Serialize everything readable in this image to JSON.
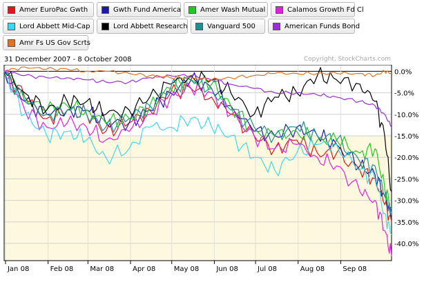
{
  "legend": [
    {
      "label": "Amer EuroPac Gwth",
      "color": "#dd1a1a"
    },
    {
      "label": "Gwth Fund America",
      "color": "#1c1c9e"
    },
    {
      "label": "Amer Wash Mutual",
      "color": "#22c922"
    },
    {
      "label": "Calamos Growth Fd Cl",
      "color": "#dd22dd"
    },
    {
      "label": "Lord Abbett Mid-Cap",
      "color": "#3fd6f0"
    },
    {
      "label": "Lord Abbett Research",
      "color": "#000000"
    },
    {
      "label": "Vanguard 500",
      "color": "#1f8f96"
    },
    {
      "label": "American Funds Bond",
      "color": "#9a2fd6"
    },
    {
      "label": "Amr Fs US Gov Scrts",
      "color": "#e07422"
    }
  ],
  "date_range": "31 December 2007 - 8 October 2008",
  "copyright": "Copyright, StockCharts.com",
  "chart_data": {
    "type": "line",
    "x": [
      "2007-12-31",
      "2008-01-15",
      "2008-01-31",
      "2008-02-15",
      "2008-02-29",
      "2008-03-14",
      "2008-03-31",
      "2008-04-15",
      "2008-04-30",
      "2008-05-15",
      "2008-05-30",
      "2008-06-13",
      "2008-06-30",
      "2008-07-15",
      "2008-07-31",
      "2008-08-15",
      "2008-08-29",
      "2008-09-15",
      "2008-09-26",
      "2008-10-03",
      "2008-10-08"
    ],
    "x_tick_labels": [
      "Jan 08",
      "Feb 08",
      "Mar 08",
      "Apr 08",
      "May 08",
      "Jun 08",
      "Jul 08",
      "Aug 08",
      "Sep 08"
    ],
    "y_tick_labels": [
      "0.0%",
      "-5.0%",
      "-10.0%",
      "-15.0%",
      "-20.0%",
      "-25.0%",
      "-30.0%",
      "-35.0%",
      "-40.0%"
    ],
    "ylim": [
      -44,
      1.5
    ],
    "grid": true,
    "legend_position": "top",
    "series": [
      {
        "name": "Amer EuroPac Gwth",
        "color": "#dd1a1a",
        "values": [
          0,
          -6,
          -11,
          -9,
          -10,
          -14,
          -12,
          -9,
          -5,
          -4,
          -6,
          -10,
          -15,
          -18,
          -16,
          -19,
          -19,
          -23,
          -25,
          -31,
          -35
        ]
      },
      {
        "name": "Gwth Fund America",
        "color": "#1c1c9e",
        "values": [
          0,
          -7,
          -10,
          -9,
          -9,
          -12,
          -12,
          -9,
          -5,
          -2,
          -4,
          -8,
          -14,
          -15,
          -13,
          -15,
          -17,
          -22,
          -24,
          -29,
          -34
        ]
      },
      {
        "name": "Amer Wash Mutual",
        "color": "#22c922",
        "values": [
          0,
          -6,
          -9,
          -8,
          -9,
          -12,
          -11,
          -8,
          -4,
          -2,
          -3,
          -8,
          -14,
          -15,
          -14,
          -16,
          -16,
          -19,
          -18,
          -27,
          -32
        ]
      },
      {
        "name": "Calamos Growth Fd Cl",
        "color": "#dd22dd",
        "values": [
          0,
          -9,
          -13,
          -12,
          -13,
          -16,
          -14,
          -10,
          -6,
          -4,
          -5,
          -10,
          -15,
          -18,
          -17,
          -20,
          -22,
          -28,
          -30,
          -37,
          -43
        ]
      },
      {
        "name": "Lord Abbett Mid-Cap",
        "color": "#3fd6f0",
        "values": [
          0,
          -10,
          -15,
          -14,
          -16,
          -20,
          -18,
          -13,
          -13,
          -11,
          -13,
          -15,
          -20,
          -23,
          -19,
          -17,
          -17,
          -23,
          -25,
          -33,
          -38
        ]
      },
      {
        "name": "Lord Abbett Research",
        "color": "#000000",
        "values": [
          0,
          -5,
          -9,
          -7,
          -7,
          -10,
          -9,
          -6,
          -3,
          -1,
          -2,
          -5,
          -10,
          -6,
          -5,
          -1,
          -2,
          -3,
          -7,
          -15,
          -28
        ]
      },
      {
        "name": "Vanguard 500",
        "color": "#1f8f96",
        "values": [
          0,
          -7,
          -10,
          -9,
          -10,
          -13,
          -11,
          -8,
          -4,
          -2,
          -4,
          -9,
          -13,
          -15,
          -13,
          -15,
          -16,
          -21,
          -22,
          -29,
          -33
        ]
      },
      {
        "name": "American Funds Bond",
        "color": "#9a2fd6",
        "values": [
          0,
          -1,
          -1.5,
          -1.5,
          -2,
          -2.5,
          -2.5,
          -1.5,
          -1,
          -1,
          -2,
          -3,
          -4,
          -5,
          -5,
          -5.5,
          -6,
          -7,
          -8,
          -10,
          -13
        ]
      },
      {
        "name": "Amr Fs US Gov Scrts",
        "color": "#e07422",
        "values": [
          0,
          1,
          0.5,
          0.5,
          0,
          0,
          -0.5,
          -1,
          -1.5,
          -1.5,
          -2,
          -1.5,
          -1,
          -0.5,
          -0.5,
          -0.5,
          -0.5,
          -0.5,
          -1,
          0,
          -0.5
        ]
      }
    ]
  }
}
